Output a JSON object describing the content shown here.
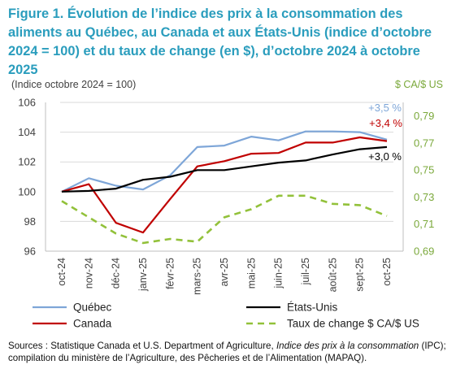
{
  "title": "Figure 1. Évolution de l’indice des prix à la consommation des aliments au Québec, au Canada et aux États-Unis (indice d’octobre 2024 = 100) et du taux de change (en $), d’octobre 2024 à octobre 2025",
  "sources": {
    "prefix": "Sources : Statistique Canada et U.S. Department of Agriculture, ",
    "italic": "Indice des prix à la consommation",
    "suffix": " (IPC); compilation du ministère de l’Agriculture, des Pêcheries et de l’Alimentation (MAPAQ)."
  },
  "colors": {
    "quebec": "#7ea6d8",
    "canada": "#c00000",
    "usa": "#000000",
    "exchange": "#92c13a",
    "title": "#2a9dbd"
  },
  "chart_data": {
    "type": "line",
    "ylabel_left": "(Indice octobre 2024 = 100)",
    "ylabel_right": "$ CA/$ US",
    "categories": [
      "oct-24",
      "nov-24",
      "déc-24",
      "janv-25",
      "févr-25",
      "mars-25",
      "avr-25",
      "mai-25",
      "juin-25",
      "juil-25",
      "août-25",
      "sept-25",
      "oct-25"
    ],
    "ylim_left": [
      96,
      106
    ],
    "yticks_left": [
      "96",
      "98",
      "100",
      "102",
      "104",
      "106"
    ],
    "ylim_right": [
      0.69,
      0.8
    ],
    "yticks_right": [
      "0,69",
      "0,71",
      "0,73",
      "0,75",
      "0,77",
      "0,79"
    ],
    "series": [
      {
        "name": "Québec",
        "axis": "left",
        "style": "solid",
        "values": [
          100.0,
          100.9,
          100.4,
          100.15,
          101.1,
          103.0,
          103.1,
          103.7,
          103.45,
          104.05,
          104.05,
          104.0,
          103.5
        ]
      },
      {
        "name": "Canada",
        "axis": "left",
        "style": "solid",
        "values": [
          100.0,
          100.5,
          97.9,
          97.25,
          99.5,
          101.7,
          102.05,
          102.55,
          102.6,
          103.3,
          103.3,
          103.65,
          103.4
        ]
      },
      {
        "name": "États-Unis",
        "axis": "left",
        "style": "solid",
        "values": [
          100.0,
          100.05,
          100.2,
          100.8,
          101.0,
          101.45,
          101.45,
          101.7,
          101.95,
          102.1,
          102.5,
          102.85,
          103.0
        ]
      },
      {
        "name": "Taux de change $ CA/$ US",
        "axis": "right",
        "style": "dashed",
        "values": [
          0.727,
          0.715,
          0.703,
          0.696,
          0.699,
          0.697,
          0.715,
          0.721,
          0.731,
          0.731,
          0.725,
          0.724,
          0.716
        ]
      }
    ],
    "annotations": [
      {
        "text": "+3,5 %",
        "series": "Québec"
      },
      {
        "text": "+3,4 %",
        "series": "Canada"
      },
      {
        "text": "+3,0 %",
        "series": "États-Unis"
      }
    ],
    "legend_position": "bottom",
    "grid": "horizontal"
  }
}
